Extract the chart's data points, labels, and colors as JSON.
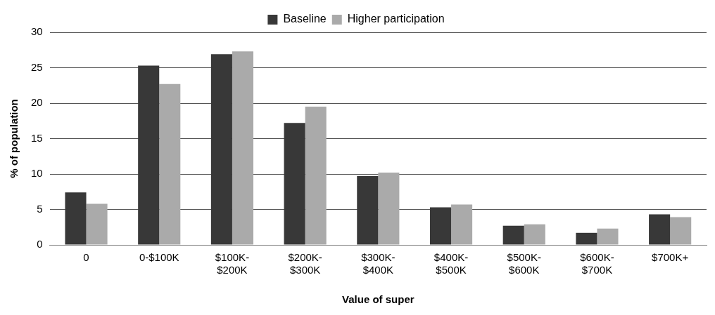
{
  "chart_data": {
    "type": "bar",
    "xlabel": "Value of super",
    "ylabel": "% of population",
    "categories": [
      "0",
      "0-$100K",
      "$100K-$200K",
      "$200K-$300K",
      "$300K-$400K",
      "$400K-$500K",
      "$500K-$600K",
      "$600K-$700K",
      "$700K+"
    ],
    "series": [
      {
        "name": "Baseline",
        "color": "#383838",
        "values": [
          7.4,
          25.3,
          26.9,
          17.2,
          9.7,
          5.3,
          2.7,
          1.7,
          4.3
        ]
      },
      {
        "name": "Higher participation",
        "color": "#aaaaaa",
        "values": [
          5.8,
          22.7,
          27.3,
          19.5,
          10.2,
          5.7,
          2.9,
          2.3,
          3.9
        ]
      }
    ],
    "ylim": [
      0,
      30
    ],
    "yticks": [
      0,
      5,
      10,
      15,
      20,
      25,
      30
    ],
    "grid": "y",
    "legend": "top"
  }
}
